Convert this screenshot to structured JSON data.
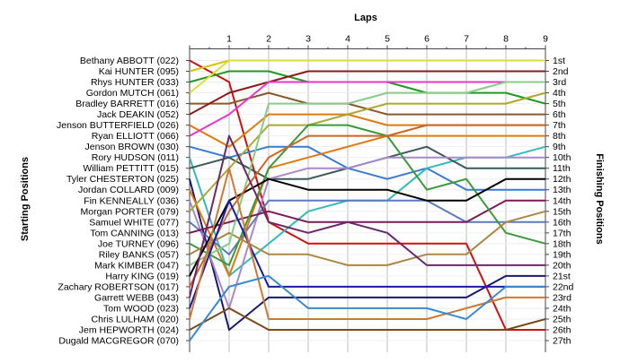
{
  "chart_data": {
    "type": "line",
    "title": "",
    "x_title": "Laps",
    "left_axis_title": "Starting Positions",
    "right_axis_title": "Finishing Positions",
    "x": [
      0,
      1,
      2,
      3,
      4,
      5,
      6,
      7,
      8,
      9
    ],
    "x_tick_labels": [
      "1",
      "2",
      "3",
      "4",
      "5",
      "6",
      "7",
      "8",
      "9"
    ],
    "y_range": [
      1,
      27
    ],
    "y_reversed": true,
    "grid": true,
    "finishing_labels": [
      "1st",
      "2nd",
      "3rd",
      "4th",
      "5th",
      "6th",
      "7th",
      "8th",
      "9th",
      "10th",
      "11th",
      "12th",
      "13th",
      "14th",
      "15th",
      "16th",
      "17th",
      "18th",
      "19th",
      "20th",
      "21st",
      "22nd",
      "23rd",
      "24th",
      "25th",
      "26th",
      "27th"
    ],
    "series": [
      {
        "name": "Bethany ABBOTT (022)",
        "color": "#cc1111",
        "values": [
          1,
          3,
          16,
          18,
          18,
          18,
          18,
          18,
          26,
          26
        ]
      },
      {
        "name": "Kai HUNTER (095)",
        "color": "#d4c400",
        "values": [
          2,
          1,
          1,
          1,
          1,
          1,
          1,
          1,
          1,
          1
        ]
      },
      {
        "name": "Rhys HUNTER (033)",
        "color": "#229922",
        "values": [
          3,
          2,
          2,
          3,
          3,
          3,
          4,
          4,
          4,
          5
        ]
      },
      {
        "name": "Gordon MUTCH (061)",
        "color": "#dddd33",
        "values": [
          4,
          1,
          1,
          1,
          1,
          1,
          1,
          1,
          1,
          1
        ]
      },
      {
        "name": "Bradley BARRETT (016)",
        "color": "#8a5a2a",
        "values": [
          5,
          5,
          4,
          5,
          5,
          6,
          6,
          6,
          6,
          6
        ]
      },
      {
        "name": "Jack DEAKIN (052)",
        "color": "#8b1a1a",
        "values": [
          6,
          4,
          3,
          2,
          2,
          2,
          2,
          2,
          2,
          2
        ]
      },
      {
        "name": "Jenson BUTTERFIELD (026)",
        "color": "#e07a10",
        "values": [
          7,
          9,
          6,
          6,
          6,
          7,
          7,
          7,
          7,
          7
        ]
      },
      {
        "name": "Ryan ELLIOTT (066)",
        "color": "#ee33cc",
        "values": [
          8,
          6,
          3,
          3,
          3,
          3,
          3,
          3,
          3,
          3
        ]
      },
      {
        "name": "Jenson BROWN (030)",
        "color": "#3a7ad0",
        "values": [
          9,
          10,
          9,
          9,
          11,
          12,
          11,
          13,
          13,
          13
        ]
      },
      {
        "name": "Rory HUDSON (011)",
        "color": "#33bbbb",
        "values": [
          10,
          21,
          18,
          15,
          14,
          14,
          11,
          10,
          10,
          9
        ]
      },
      {
        "name": "William PETTITT (015)",
        "color": "#3a5a5a",
        "values": [
          11,
          10,
          12,
          12,
          11,
          10,
          9,
          11,
          11,
          11
        ]
      },
      {
        "name": "Tyler CHESTERTON (025)",
        "color": "#1a1a6a",
        "values": [
          12,
          26,
          23,
          23,
          23,
          23,
          23,
          23,
          21,
          21
        ]
      },
      {
        "name": "Jordan COLLARD (009)",
        "color": "#e07a10",
        "values": [
          13,
          21,
          11,
          10,
          9,
          8,
          8,
          8,
          8,
          8
        ]
      },
      {
        "name": "Fin KENNEALLY (036)",
        "color": "#aa88cc",
        "values": [
          14,
          24,
          12,
          11,
          11,
          10,
          10,
          10,
          10,
          10
        ]
      },
      {
        "name": "Morgan PORTER (079)",
        "color": "#aaaa33",
        "values": [
          15,
          11,
          7,
          7,
          6,
          5,
          5,
          5,
          5,
          4
        ]
      },
      {
        "name": "Samuel WHITE (077)",
        "color": "#5a7ac0",
        "values": [
          16,
          19,
          14,
          14,
          14,
          14,
          14,
          16,
          16,
          16
        ]
      },
      {
        "name": "Tom CANNING (013)",
        "color": "#7a1a5a",
        "values": [
          17,
          16,
          15,
          16,
          16,
          16,
          16,
          16,
          14,
          14
        ]
      },
      {
        "name": "Joe TURNEY (096)",
        "color": "#3a9a3a",
        "values": [
          18,
          20,
          11,
          7,
          7,
          8,
          13,
          12,
          17,
          18
        ]
      },
      {
        "name": "Riley BANKS (057)",
        "color": "#aa8844",
        "values": [
          19,
          17,
          19,
          19,
          20,
          20,
          19,
          19,
          16,
          15
        ]
      },
      {
        "name": "Mark KIMBER (047)",
        "color": "#88cc88",
        "values": [
          20,
          18,
          5,
          5,
          5,
          4,
          4,
          4,
          3,
          3
        ]
      },
      {
        "name": "Harry KING (019)",
        "color": "#000000",
        "values": [
          21,
          14,
          12,
          13,
          13,
          13,
          14,
          14,
          12,
          12
        ]
      },
      {
        "name": "Zachary ROBERTSON (017)",
        "color": "#cc6622",
        "values": [
          22,
          15,
          10,
          8,
          8,
          8,
          7,
          7,
          7,
          7
        ]
      },
      {
        "name": "Garrett WEBB (043)",
        "color": "#6a2a6a",
        "values": [
          23,
          8,
          16,
          17,
          16,
          17,
          20,
          20,
          20,
          20
        ]
      },
      {
        "name": "Tom WOOD (023)",
        "color": "#1a1aaa",
        "values": [
          24,
          14,
          22,
          22,
          22,
          22,
          22,
          22,
          22,
          22
        ]
      },
      {
        "name": "Chris LULHAM (020)",
        "color": "#cc7a33",
        "values": [
          25,
          11,
          25,
          25,
          25,
          25,
          25,
          24,
          23,
          23
        ]
      },
      {
        "name": "Jem HEPWORTH (024)",
        "color": "#7a4a1a",
        "values": [
          26,
          24,
          26,
          26,
          26,
          26,
          26,
          26,
          26,
          25
        ]
      },
      {
        "name": "Dugald MACGREGOR (070)",
        "color": "#3a8ad0",
        "values": [
          27,
          22,
          21,
          24,
          24,
          24,
          24,
          25,
          22,
          22
        ]
      }
    ]
  }
}
